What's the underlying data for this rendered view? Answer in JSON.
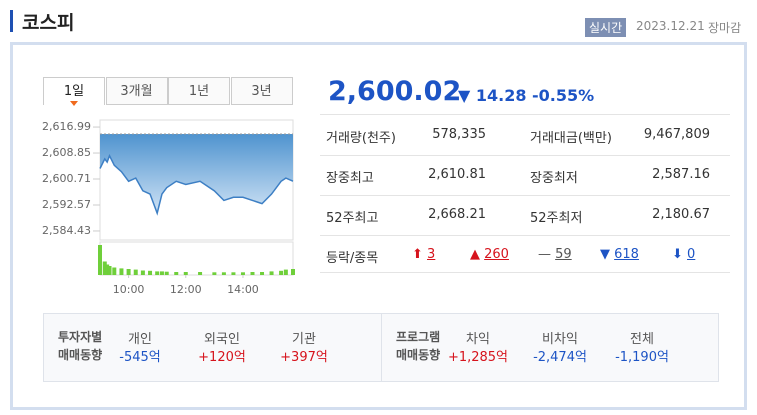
{
  "header": {
    "title": "코스피",
    "badge": "실시간",
    "date": "2023.12.21",
    "status": "장마감"
  },
  "tabs": [
    "1일",
    "3개월",
    "1년",
    "3년"
  ],
  "chart_data": {
    "type": "line",
    "x": [
      "09:00",
      "09:10",
      "09:15",
      "09:20",
      "09:30",
      "09:45",
      "10:00",
      "10:15",
      "10:30",
      "10:45",
      "11:00",
      "11:10",
      "11:20",
      "11:40",
      "12:00",
      "12:30",
      "13:00",
      "13:20",
      "13:40",
      "14:00",
      "14:20",
      "14:40",
      "15:00",
      "15:20",
      "15:30",
      "15:45"
    ],
    "values": [
      2604,
      2607,
      2606,
      2608,
      2605,
      2603,
      2600,
      2601,
      2597,
      2596,
      2590,
      2596,
      2598,
      2600,
      2599,
      2600,
      2597,
      2594,
      2595,
      2595,
      2594,
      2593,
      2596,
      2600,
      2601,
      2600.02
    ],
    "color": "#3d7fc4",
    "xlim": [
      "09:00",
      "15:45"
    ],
    "xticks": [
      "10:00",
      "12:00",
      "14:00"
    ],
    "ylim": [
      2581.6,
      2619.2
    ],
    "yticks": [
      {
        "value": 2616.99,
        "label": "2,616.99"
      },
      {
        "value": 2608.85,
        "label": "2,608.85"
      },
      {
        "value": 2600.71,
        "label": "2,600.71"
      },
      {
        "value": 2592.57,
        "label": "2,592.57"
      },
      {
        "value": 2584.43,
        "label": "2,584.43"
      }
    ],
    "volume": {
      "color": "#6fcf3a",
      "values": [
        100,
        45,
        35,
        30,
        25,
        22,
        20,
        18,
        15,
        14,
        12,
        12,
        11,
        10,
        10,
        10,
        9,
        9,
        9,
        9,
        10,
        10,
        12,
        14,
        18,
        20
      ]
    }
  },
  "price": {
    "value": "2,600.02",
    "change": "14.28",
    "rate": "-0.55%"
  },
  "stats": [
    [
      "거래량(천주)",
      "578,335",
      "거래대금(백만)",
      "9,467,809"
    ],
    [
      "장중최고",
      "2,610.81",
      "장중최저",
      "2,587.16"
    ],
    [
      "52주최고",
      "2,668.21",
      "52주최저",
      "2,180.67"
    ]
  ],
  "breadth": {
    "label": "등락/종목",
    "upper": "3",
    "up": "260",
    "flat": "59",
    "down": "618",
    "lower": "0"
  },
  "investors": {
    "title": [
      "투자자별",
      "매매동향"
    ],
    "items": [
      [
        "개인",
        "-545억"
      ],
      [
        "외국인",
        "+120억"
      ],
      [
        "기관",
        "+397억"
      ]
    ]
  },
  "program": {
    "title": [
      "프로그램",
      "매매동향"
    ],
    "items": [
      [
        "차익",
        "+1,285억"
      ],
      [
        "비차익",
        "-2,474억"
      ],
      [
        "전체",
        "-1,190억"
      ]
    ]
  }
}
